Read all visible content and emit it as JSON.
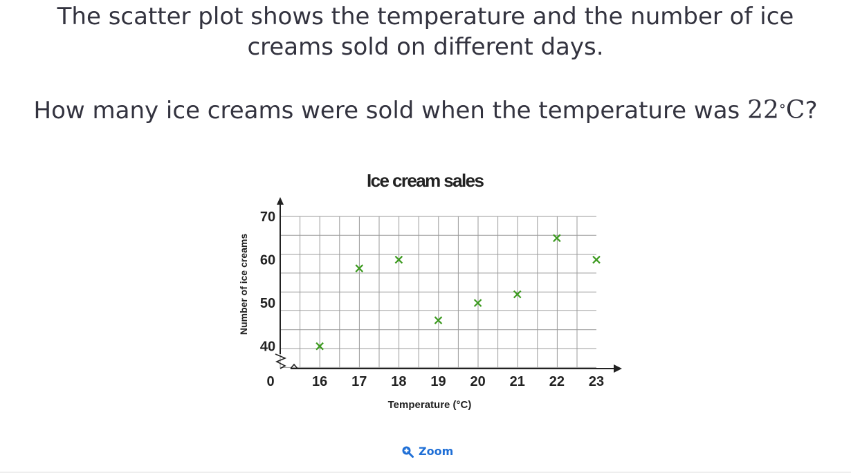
{
  "question": {
    "line1": "The scatter plot shows the temperature and the number of ice creams sold on different days.",
    "line2_before": "How many ice creams were sold when the temperature was ",
    "line2_value": "22",
    "line2_degree": "°",
    "line2_unit": "C",
    "line2_after": "?"
  },
  "zoom": {
    "label": "Zoom",
    "icon": "zoom-in-icon"
  },
  "chart_data": {
    "type": "scatter",
    "title": "Ice cream sales",
    "xlabel": "Temperature (°C)",
    "ylabel": "Number of ice creams",
    "x_ticks": [
      "16",
      "17",
      "18",
      "19",
      "20",
      "21",
      "22",
      "23"
    ],
    "y_ticks": [
      "40",
      "50",
      "60",
      "70"
    ],
    "origin_label": "0",
    "xlim": [
      15,
      23
    ],
    "ylim": [
      35,
      70
    ],
    "axis_break": true,
    "grid": true,
    "marker": "x",
    "color": "#3c9a1f",
    "points": [
      {
        "x": 16,
        "y": 40
      },
      {
        "x": 17,
        "y": 58
      },
      {
        "x": 18,
        "y": 60
      },
      {
        "x": 19,
        "y": 46
      },
      {
        "x": 20,
        "y": 50
      },
      {
        "x": 21,
        "y": 52
      },
      {
        "x": 22,
        "y": 65
      },
      {
        "x": 23,
        "y": 60
      }
    ]
  }
}
